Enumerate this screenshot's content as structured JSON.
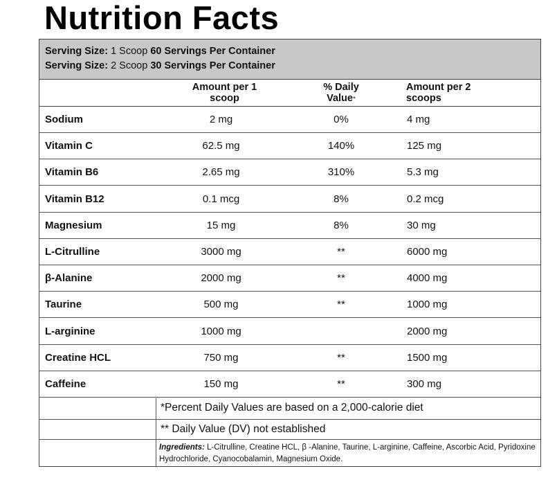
{
  "title": "Nutrition Facts",
  "serving": [
    {
      "label": "Serving Size:",
      "size": "1 Scoop",
      "count": "60 Servings Per Container"
    },
    {
      "label": "Serving Size:",
      "size": "2 Scoop",
      "count": "30 Servings Per Container"
    }
  ],
  "headers": {
    "amount1": "Amount per 1 scoop",
    "daily_value": "% Daily Value",
    "daily_value_mark": "*",
    "amount2": "Amount per 2 scoops"
  },
  "rows": [
    {
      "name": "Sodium",
      "amount1": "2 mg",
      "dv": "0%",
      "amount2": "4 mg"
    },
    {
      "name": "Vitamin C",
      "amount1": "62.5 mg",
      "dv": "140%",
      "amount2": "125 mg"
    },
    {
      "name": "Vitamin B6",
      "amount1": "2.65 mg",
      "dv": "310%",
      "amount2": "5.3 mg"
    },
    {
      "name": "Vitamin B12",
      "amount1": "0.1 mcg",
      "dv": "8%",
      "amount2": "0.2 mcg"
    },
    {
      "name": "Magnesium",
      "amount1": "15 mg",
      "dv": "8%",
      "amount2": "30 mg"
    },
    {
      "name": "L-Citrulline",
      "amount1": "3000 mg",
      "dv": "**",
      "amount2": "6000 mg"
    },
    {
      "name": "β-Alanine",
      "amount1": "2000 mg",
      "dv": "**",
      "amount2": "4000 mg"
    },
    {
      "name": "Taurine",
      "amount1": "500 mg",
      "dv": "**",
      "amount2": "1000 mg"
    },
    {
      "name": "L-arginine",
      "amount1": "1000 mg",
      "dv": "",
      "amount2": "2000 mg"
    },
    {
      "name": "Creatine HCL",
      "amount1": "750 mg",
      "dv": "**",
      "amount2": "1500 mg"
    },
    {
      "name": "Caffeine",
      "amount1": "150 mg",
      "dv": "**",
      "amount2": "300 mg"
    }
  ],
  "footnotes": {
    "percent_note": "*Percent Daily Values are based on a 2,000-calorie diet",
    "dv_note": "** Daily Value (DV) not established",
    "ingredients_label": "Ingredients:",
    "ingredients_text": "L-Citrulline, Creatine HCL, β -Alanine, Taurine, L-arginine, Caffeine, Ascorbic Acid, Pyridoxine Hydrochloride, Cyanocobalamin, Magnesium Oxide."
  }
}
